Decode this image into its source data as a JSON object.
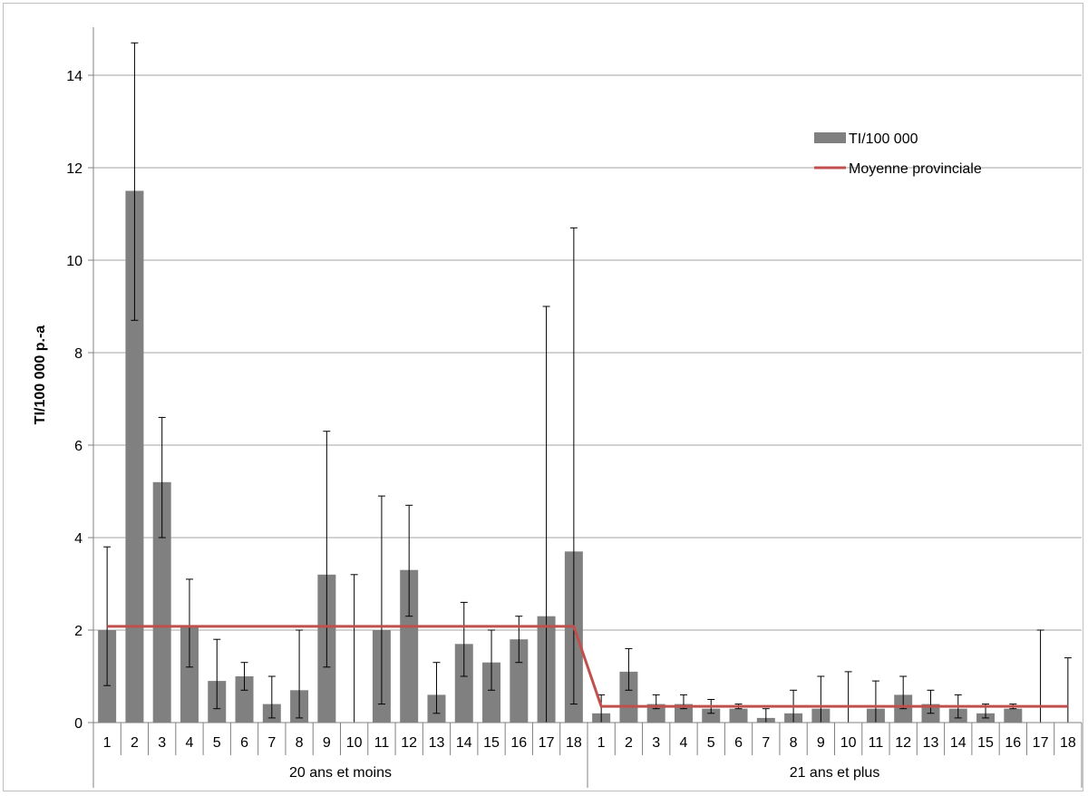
{
  "chart_data": {
    "type": "bar",
    "title": "",
    "xlabel": "",
    "ylabel": "TI/100 000 p.-a",
    "ylim": [
      0,
      15
    ],
    "yticks": [
      0,
      2,
      4,
      6,
      8,
      10,
      12,
      14
    ],
    "grid": true,
    "legend_position": "top-right",
    "colors": {
      "bar": "#808080",
      "line": "#c0504d",
      "grid": "#a6a6a6",
      "errorbar": "#000000"
    },
    "groups": [
      {
        "label": "20 ans et moins",
        "categories": [
          "1",
          "2",
          "3",
          "4",
          "5",
          "6",
          "7",
          "8",
          "9",
          "10",
          "11",
          "12",
          "13",
          "14",
          "15",
          "16",
          "17",
          "18"
        ],
        "values": [
          2.0,
          11.5,
          5.2,
          2.1,
          0.9,
          1.0,
          0.4,
          0.7,
          3.2,
          0.0,
          2.0,
          3.3,
          0.6,
          1.7,
          1.3,
          1.8,
          2.3,
          3.7
        ],
        "error_low": [
          0.8,
          8.7,
          4.0,
          1.2,
          0.3,
          0.7,
          0.1,
          0.1,
          1.2,
          0.0,
          0.4,
          2.3,
          0.2,
          1.0,
          0.7,
          1.3,
          0.0,
          0.4
        ],
        "error_high": [
          3.8,
          14.7,
          6.6,
          3.1,
          1.8,
          1.3,
          1.0,
          2.0,
          6.3,
          3.2,
          4.9,
          4.7,
          1.3,
          2.6,
          2.0,
          2.3,
          9.0,
          10.7
        ],
        "provincial_mean": 2.08
      },
      {
        "label": "21 ans et plus",
        "categories": [
          "1",
          "2",
          "3",
          "4",
          "5",
          "6",
          "7",
          "8",
          "9",
          "10",
          "11",
          "12",
          "13",
          "14",
          "15",
          "16",
          "17",
          "18"
        ],
        "values": [
          0.2,
          1.1,
          0.4,
          0.4,
          0.3,
          0.3,
          0.1,
          0.2,
          0.3,
          0.0,
          0.3,
          0.6,
          0.4,
          0.3,
          0.2,
          0.3,
          0.0,
          0.0
        ],
        "error_low": [
          0.0,
          0.7,
          0.3,
          0.3,
          0.2,
          0.3,
          0.0,
          0.0,
          0.0,
          0.0,
          0.0,
          0.3,
          0.2,
          0.1,
          0.1,
          0.3,
          0.0,
          0.0
        ],
        "error_high": [
          0.6,
          1.6,
          0.6,
          0.6,
          0.5,
          0.4,
          0.3,
          0.7,
          1.0,
          1.1,
          0.9,
          1.0,
          0.7,
          0.6,
          0.4,
          0.4,
          2.0,
          1.4
        ],
        "provincial_mean": 0.35
      }
    ],
    "series": [
      {
        "name": "TI/100 000",
        "kind": "bar"
      },
      {
        "name": "Moyenne provinciale",
        "kind": "line"
      }
    ]
  }
}
